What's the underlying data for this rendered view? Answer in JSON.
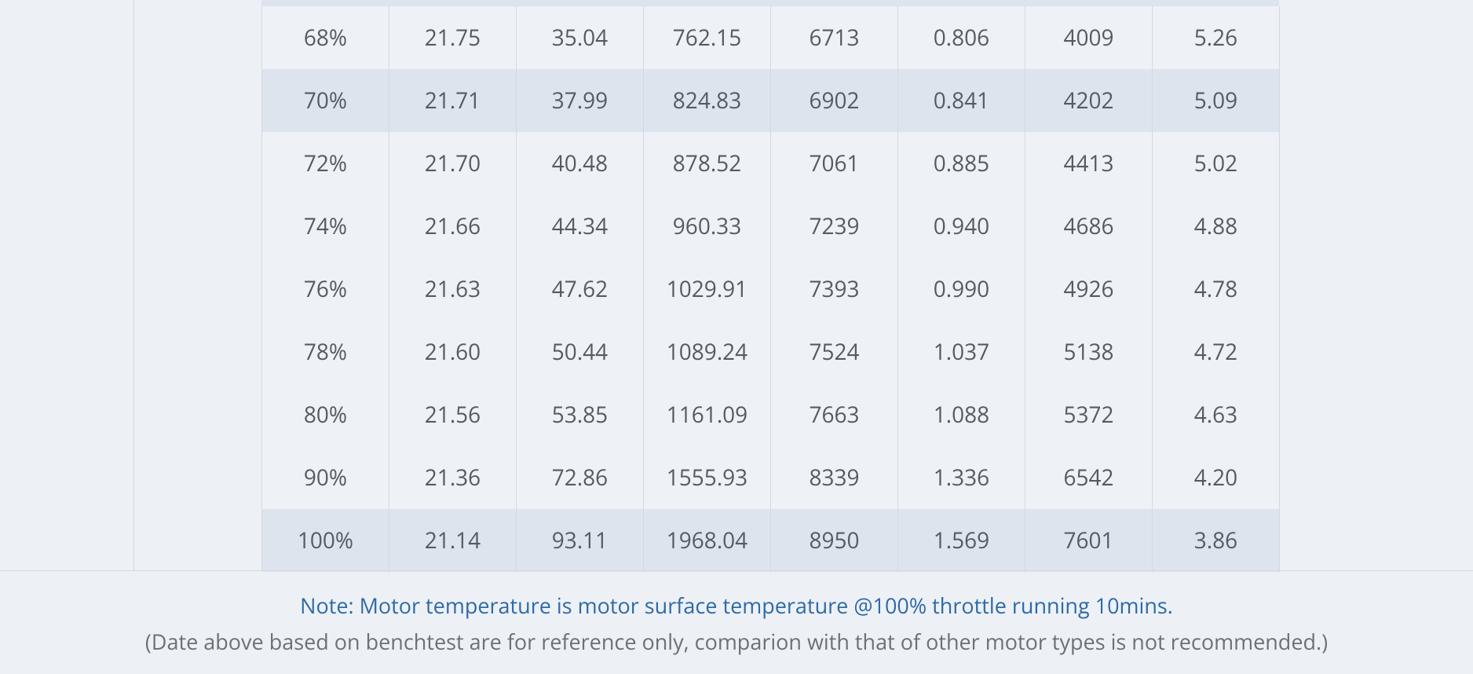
{
  "table": {
    "rows": [
      [
        "68%",
        "21.75",
        "35.04",
        "762.15",
        "6713",
        "0.806",
        "4009",
        "5.26"
      ],
      [
        "70%",
        "21.71",
        "37.99",
        "824.83",
        "6902",
        "0.841",
        "4202",
        "5.09"
      ],
      [
        "72%",
        "21.70",
        "40.48",
        "878.52",
        "7061",
        "0.885",
        "4413",
        "5.02"
      ],
      [
        "74%",
        "21.66",
        "44.34",
        "960.33",
        "7239",
        "0.940",
        "4686",
        "4.88"
      ],
      [
        "76%",
        "21.63",
        "47.62",
        "1029.91",
        "7393",
        "0.990",
        "4926",
        "4.78"
      ],
      [
        "78%",
        "21.60",
        "50.44",
        "1089.24",
        "7524",
        "1.037",
        "5138",
        "4.72"
      ],
      [
        "80%",
        "21.56",
        "53.85",
        "1161.09",
        "7663",
        "1.088",
        "5372",
        "4.63"
      ],
      [
        "90%",
        "21.36",
        "72.86",
        "1555.93",
        "8339",
        "1.336",
        "6542",
        "4.20"
      ],
      [
        "100%",
        "21.14",
        "93.11",
        "1968.04",
        "8950",
        "1.569",
        "7601",
        "3.86"
      ]
    ]
  },
  "note": "Note: Motor temperature is motor surface temperature @100% throttle running 10mins.",
  "disclaimer": "(Date above based on benchtest are for reference only, comparion with that of other motor types is not recommended.)"
}
